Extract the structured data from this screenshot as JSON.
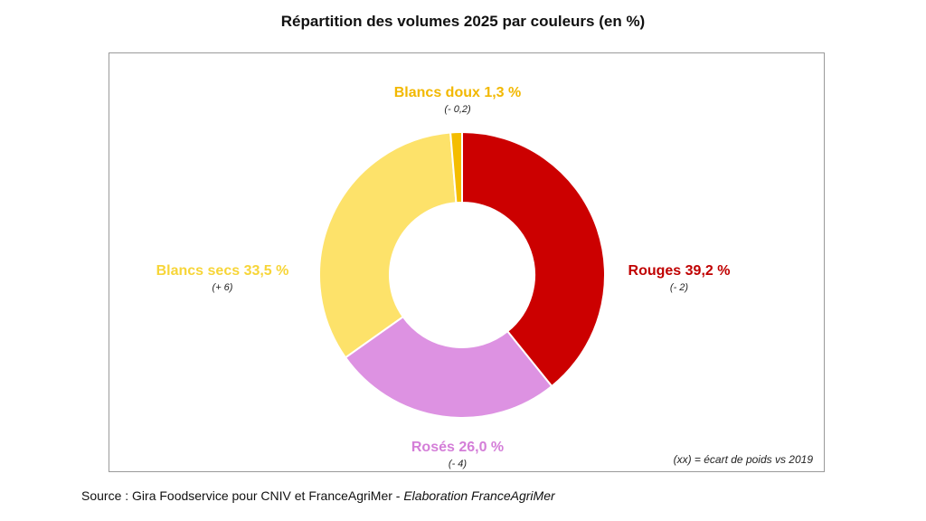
{
  "title": "Répartition des volumes 2025 par couleurs (en %)",
  "note": "(xx) = écart de poids vs 2019",
  "source": {
    "prefix": "Source : Gira Foodservice pour CNIV et FranceAgriMer - ",
    "italic": "Elaboration FranceAgriMer"
  },
  "chart_data": {
    "type": "pie",
    "donut": true,
    "title": "Répartition des volumes 2025 par couleurs (en %)",
    "slices": [
      {
        "key": "rouges",
        "label": "Rouges 39,2 %",
        "value": 39.2,
        "delta": "(- 2)",
        "color": "#cc0000",
        "label_color": "#c00000"
      },
      {
        "key": "roses",
        "label": "Rosés 26,0 %",
        "value": 26.0,
        "delta": "(- 4)",
        "color": "#dd92e2",
        "label_color": "#d47ed8"
      },
      {
        "key": "blancs-secs",
        "label": "Blancs secs 33,5 %",
        "value": 33.5,
        "delta": "(+ 6)",
        "color": "#fde26a",
        "label_color": "#f7d538"
      },
      {
        "key": "blancs-doux",
        "label": "Blancs doux 1,3 %",
        "value": 1.3,
        "delta": "(- 0,2)",
        "color": "#f4bd00",
        "label_color": "#f2b800"
      }
    ]
  }
}
